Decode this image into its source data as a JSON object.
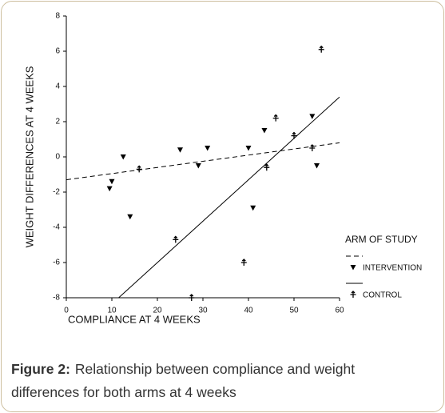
{
  "chart_data": {
    "type": "scatter",
    "x_label": "COMPLIANCE AT 4 WEEKS",
    "y_label": "WEIGHT DIFFERENCES AT 4 WEEKS",
    "legend_title": "ARM OF STUDY",
    "legend": "right",
    "xlim": [
      0,
      60
    ],
    "xticks": [
      0,
      10,
      20,
      30,
      40,
      50,
      60
    ],
    "ylim": [
      -8,
      8
    ],
    "yticks": [
      -8,
      -6,
      -4,
      -2,
      0,
      2,
      4,
      6,
      8
    ],
    "grid": false,
    "series": [
      {
        "name": "INTERVENTION",
        "color": "#000000",
        "marker": "triangle",
        "x": [
          9.5,
          10,
          12.5,
          14,
          25,
          29,
          31,
          40,
          41,
          43.5,
          54,
          55
        ],
        "values": [
          -1.8,
          -1.4,
          0.0,
          -3.4,
          0.4,
          -0.5,
          0.5,
          0.5,
          -2.9,
          1.5,
          2.3,
          -0.5
        ],
        "fit": {
          "x": [
            0,
            60
          ],
          "values": [
            -1.3,
            0.8
          ],
          "dash": true
        }
      },
      {
        "name": "CONTROL",
        "color": "#000000",
        "marker": "tack",
        "x": [
          16,
          24,
          27.5,
          39,
          44,
          46,
          50,
          54,
          56
        ],
        "values": [
          -0.7,
          -4.7,
          -8.0,
          -6.0,
          -0.6,
          2.2,
          1.2,
          0.5,
          6.1
        ],
        "fit": {
          "x": [
            11.5,
            60
          ],
          "values": [
            -8.0,
            3.4
          ],
          "dash": false
        }
      }
    ]
  },
  "caption": {
    "label": "Figure 2:",
    "lines": [
      "Relationship between compliance and weight",
      "differences for both arms at 4 weeks"
    ]
  }
}
